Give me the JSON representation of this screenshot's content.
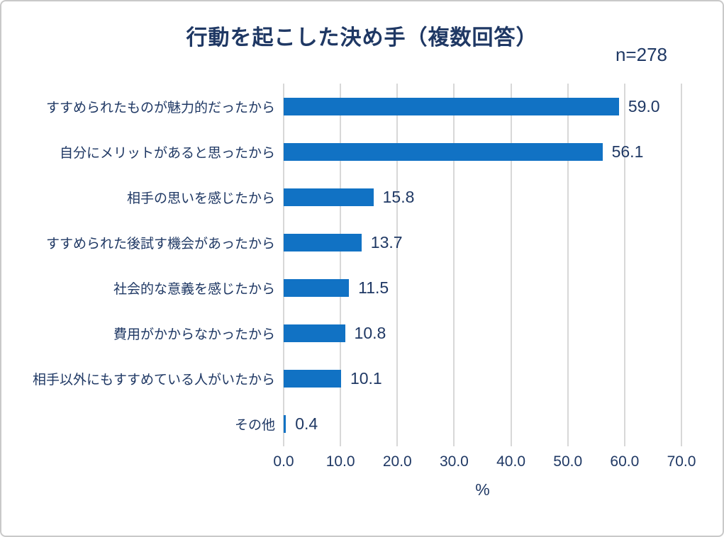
{
  "chart_data": {
    "type": "bar",
    "orientation": "horizontal",
    "title": "行動を起こした決め手（複数回答）",
    "sample_label": "n=278",
    "categories": [
      "すすめられたものが魅力的だったから",
      "自分にメリットがあると思ったから",
      "相手の思いを感じたから",
      "すすめられた後試す機会があったから",
      "社会的な意義を感じたから",
      "費用がかからなかったから",
      "相手以外にもすすめている人がいたから",
      "その他"
    ],
    "values": [
      59.0,
      56.1,
      15.8,
      13.7,
      11.5,
      10.8,
      10.1,
      0.4
    ],
    "value_labels": [
      "59.0",
      "56.1",
      "15.8",
      "13.7",
      "11.5",
      "10.8",
      "10.1",
      "0.4"
    ],
    "xlabel": "%",
    "xlim": [
      0,
      70
    ],
    "x_ticks": [
      "0.0",
      "10.0",
      "20.0",
      "30.0",
      "40.0",
      "50.0",
      "60.0",
      "70.0"
    ],
    "grid": true,
    "legend": "none",
    "colors": {
      "bar": "#1172C4",
      "text": "#1F3864",
      "gridline": "#D8D8D8"
    }
  }
}
